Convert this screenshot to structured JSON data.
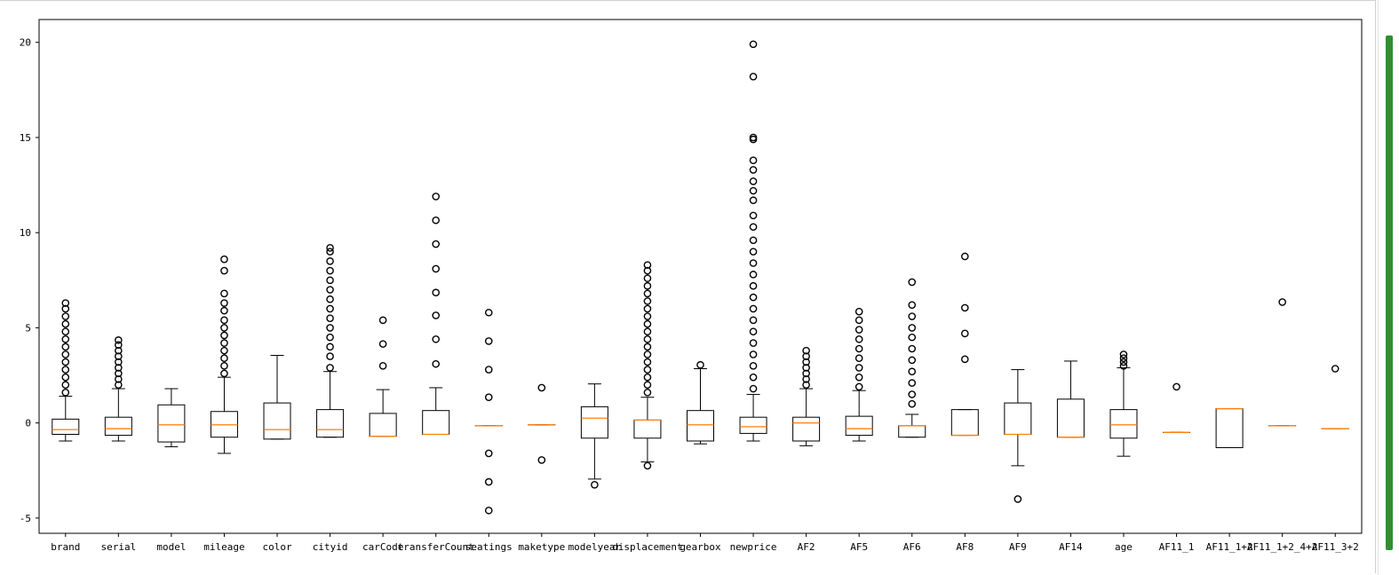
{
  "colors": {
    "box": "#000000",
    "median": "#ff7f0e",
    "flier": "#000000",
    "scrollbar": "#2f8f2f"
  },
  "chart_data": {
    "type": "boxplot",
    "title": "",
    "xlabel": "",
    "ylabel": "",
    "ylim": [
      -5.8,
      21.2
    ],
    "yticks": [
      -5,
      0,
      5,
      10,
      15,
      20
    ],
    "ytick_labels": [
      "-5",
      "0",
      "5",
      "10",
      "15",
      "20"
    ],
    "grid": false,
    "legend": "none",
    "categories": [
      "brand",
      "serial",
      "model",
      "mileage",
      "color",
      "cityid",
      "carCode",
      "transferCount",
      "seatings",
      "maketype",
      "modelyear",
      "displacement",
      "gearbox",
      "newprice",
      "AF2",
      "AF5",
      "AF6",
      "AF8",
      "AF9",
      "AF14",
      "age",
      "AF11_1",
      "AF11_1+2",
      "AF11_1+2_4+2",
      "AF11_3+2"
    ],
    "boxes": [
      {
        "label": "brand",
        "whislo": -0.95,
        "q1": -0.6,
        "med": -0.35,
        "q3": 0.2,
        "whishi": 1.4,
        "fliers": [
          1.6,
          2.0,
          2.4,
          2.8,
          3.2,
          3.6,
          4.0,
          4.4,
          4.8,
          5.2,
          5.6,
          6.0,
          6.3
        ]
      },
      {
        "label": "serial",
        "whislo": -0.95,
        "q1": -0.65,
        "med": -0.3,
        "q3": 0.3,
        "whishi": 1.8,
        "fliers": [
          2.0,
          2.3,
          2.6,
          2.9,
          3.2,
          3.5,
          3.8,
          4.1,
          4.35
        ]
      },
      {
        "label": "model",
        "whislo": -1.25,
        "q1": -1.0,
        "med": -0.1,
        "q3": 0.95,
        "whishi": 1.8,
        "fliers": []
      },
      {
        "label": "mileage",
        "whislo": -1.6,
        "q1": -0.75,
        "med": -0.1,
        "q3": 0.6,
        "whishi": 2.4,
        "fliers": [
          2.6,
          3.0,
          3.4,
          3.8,
          4.2,
          4.6,
          5.0,
          5.4,
          5.9,
          6.3,
          6.8,
          8.0,
          8.6
        ]
      },
      {
        "label": "color",
        "whislo": -0.85,
        "q1": -0.85,
        "med": -0.35,
        "q3": 1.05,
        "whishi": 3.55,
        "fliers": []
      },
      {
        "label": "cityid",
        "whislo": -0.75,
        "q1": -0.75,
        "med": -0.35,
        "q3": 0.7,
        "whishi": 2.7,
        "fliers": [
          2.9,
          3.5,
          4.0,
          4.5,
          5.0,
          5.5,
          6.0,
          6.5,
          7.0,
          7.5,
          8.0,
          8.5,
          9.0,
          9.2
        ]
      },
      {
        "label": "carCode",
        "whislo": -0.7,
        "q1": -0.7,
        "med": -0.7,
        "q3": 0.5,
        "whishi": 1.75,
        "fliers": [
          3.0,
          4.15,
          5.4
        ]
      },
      {
        "label": "transferCount",
        "whislo": -0.6,
        "q1": -0.6,
        "med": -0.6,
        "q3": 0.65,
        "whishi": 1.85,
        "fliers": [
          3.1,
          4.4,
          5.65,
          6.85,
          8.1,
          9.4,
          10.65,
          11.9
        ]
      },
      {
        "label": "seatings",
        "whislo": -0.15,
        "q1": -0.15,
        "med": -0.15,
        "q3": -0.15,
        "whishi": -0.15,
        "fliers": [
          -4.6,
          -3.1,
          -1.6,
          1.35,
          2.8,
          4.3,
          5.8
        ]
      },
      {
        "label": "maketype",
        "whislo": -0.1,
        "q1": -0.1,
        "med": -0.1,
        "q3": -0.1,
        "whishi": -0.1,
        "fliers": [
          -1.95,
          1.85
        ]
      },
      {
        "label": "modelyear",
        "whislo": -2.95,
        "q1": -0.8,
        "med": 0.25,
        "q3": 0.85,
        "whishi": 2.05,
        "fliers": [
          -3.25
        ]
      },
      {
        "label": "displacement",
        "whislo": -2.05,
        "q1": -0.8,
        "med": 0.15,
        "q3": 0.15,
        "whishi": 1.35,
        "fliers": [
          -2.25,
          1.6,
          2.0,
          2.4,
          2.8,
          3.2,
          3.6,
          4.0,
          4.4,
          4.8,
          5.2,
          5.6,
          6.0,
          6.4,
          6.8,
          7.2,
          7.6,
          8.0,
          8.3
        ]
      },
      {
        "label": "gearbox",
        "whislo": -1.1,
        "q1": -0.95,
        "med": -0.1,
        "q3": 0.65,
        "whishi": 2.85,
        "fliers": [
          3.05
        ]
      },
      {
        "label": "newprice",
        "whislo": -0.95,
        "q1": -0.55,
        "med": -0.2,
        "q3": 0.3,
        "whishi": 1.5,
        "fliers": [
          1.8,
          2.4,
          3.0,
          3.6,
          4.2,
          4.8,
          5.4,
          6.0,
          6.6,
          7.2,
          7.8,
          8.4,
          9.0,
          9.6,
          10.3,
          10.9,
          11.7,
          12.2,
          12.7,
          13.3,
          13.8,
          14.9,
          15.0,
          18.2,
          19.9
        ]
      },
      {
        "label": "AF2",
        "whislo": -1.2,
        "q1": -0.95,
        "med": 0.0,
        "q3": 0.3,
        "whishi": 1.8,
        "fliers": [
          2.0,
          2.3,
          2.6,
          2.9,
          3.2,
          3.5,
          3.8
        ]
      },
      {
        "label": "AF5",
        "whislo": -0.95,
        "q1": -0.65,
        "med": -0.3,
        "q3": 0.35,
        "whishi": 1.7,
        "fliers": [
          1.9,
          2.4,
          2.9,
          3.4,
          3.9,
          4.4,
          4.9,
          5.4,
          5.85
        ]
      },
      {
        "label": "AF6",
        "whislo": -0.75,
        "q1": -0.75,
        "med": -0.15,
        "q3": -0.15,
        "whishi": 0.45,
        "fliers": [
          1.0,
          1.5,
          2.1,
          2.7,
          3.3,
          3.9,
          4.5,
          5.0,
          5.6,
          6.2,
          7.4
        ]
      },
      {
        "label": "AF8",
        "whislo": -0.65,
        "q1": -0.65,
        "med": -0.65,
        "q3": 0.7,
        "whishi": 0.7,
        "fliers": [
          3.35,
          4.7,
          6.05,
          8.75
        ]
      },
      {
        "label": "AF9",
        "whislo": -2.25,
        "q1": -0.6,
        "med": -0.6,
        "q3": 1.05,
        "whishi": 2.8,
        "fliers": [
          -4.0
        ]
      },
      {
        "label": "AF14",
        "whislo": -0.75,
        "q1": -0.75,
        "med": -0.75,
        "q3": 1.25,
        "whishi": 3.25,
        "fliers": []
      },
      {
        "label": "age",
        "whislo": -1.75,
        "q1": -0.8,
        "med": -0.1,
        "q3": 0.7,
        "whishi": 2.9,
        "fliers": [
          3.0,
          3.2,
          3.4,
          3.6
        ]
      },
      {
        "label": "AF11_1",
        "whislo": -0.5,
        "q1": -0.5,
        "med": -0.5,
        "q3": -0.5,
        "whishi": -0.5,
        "fliers": [
          1.9
        ]
      },
      {
        "label": "AF11_1+2",
        "whislo": -1.3,
        "q1": -1.3,
        "med": 0.75,
        "q3": 0.75,
        "whishi": 0.75,
        "fliers": []
      },
      {
        "label": "AF11_1+2_4+2",
        "whislo": -0.15,
        "q1": -0.15,
        "med": -0.15,
        "q3": -0.15,
        "whishi": -0.15,
        "fliers": [
          6.35
        ]
      },
      {
        "label": "AF11_3+2",
        "whislo": -0.3,
        "q1": -0.3,
        "med": -0.3,
        "q3": -0.3,
        "whishi": -0.3,
        "fliers": [
          2.85
        ]
      }
    ]
  }
}
